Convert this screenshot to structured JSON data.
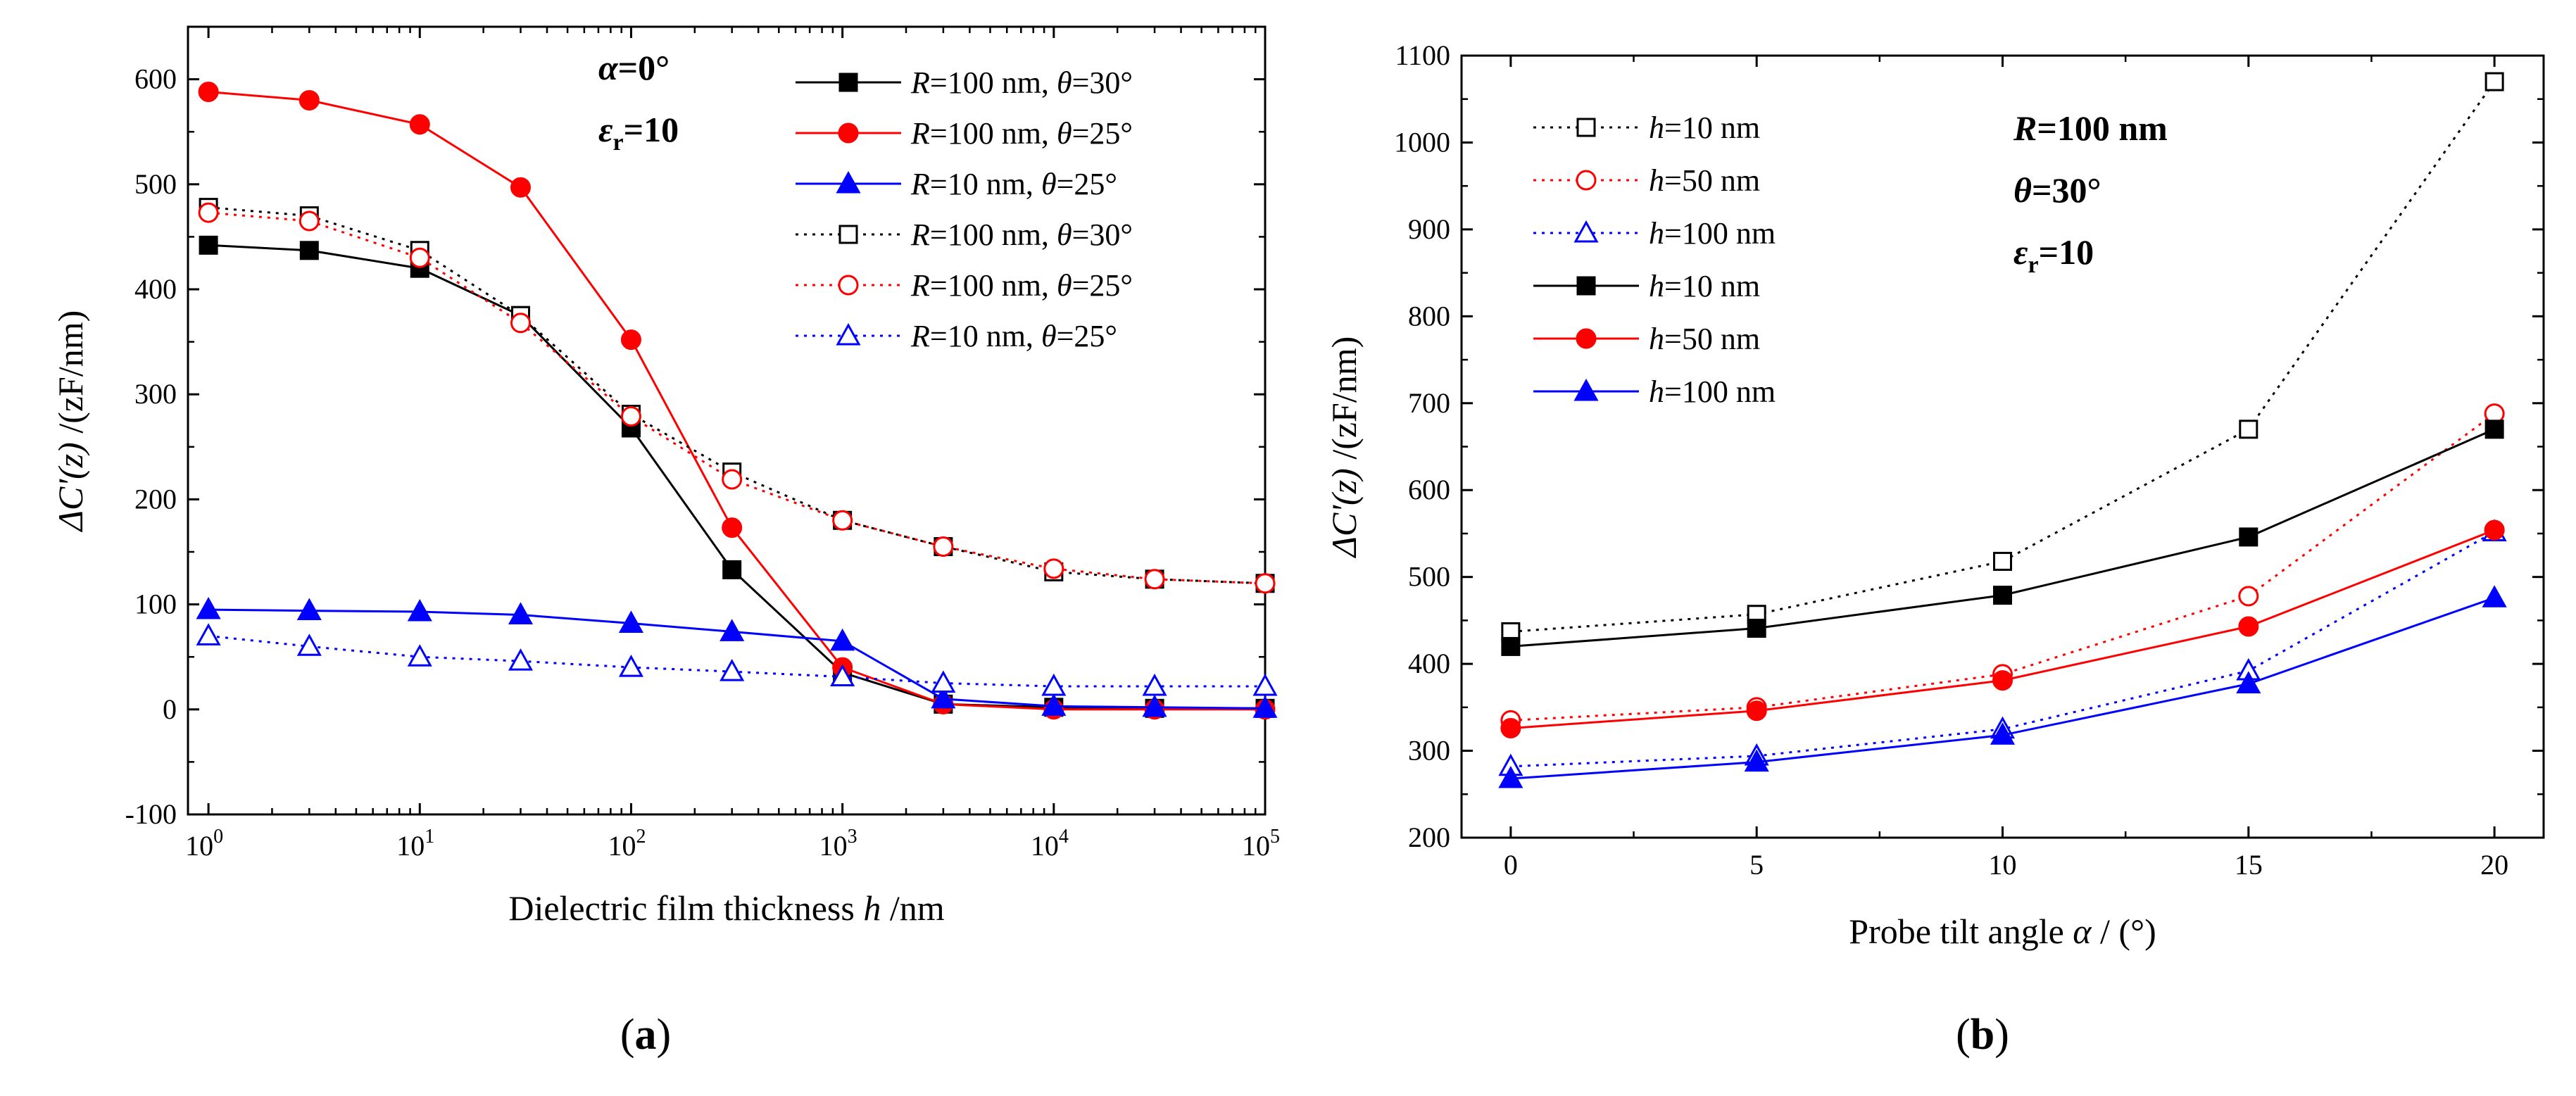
{
  "chart_data": [
    {
      "type": "line",
      "panel_label": "(a)",
      "panel_letter": "a",
      "xscale": "log",
      "xlabel": "Dielectric film thickness h /nm",
      "xlabel_main": "Dielectric film thickness ",
      "xlabel_var": "h",
      "xlabel_unit": " /nm",
      "ylabel": "ΔC'(z) /(zF/nm)",
      "ylabel_var": "ΔC'(z)",
      "ylabel_unit": " /(zF/nm)",
      "xlim": [
        0.8,
        100000
      ],
      "ylim": [
        -100,
        650
      ],
      "x_ticks": [
        {
          "value": 1,
          "base": "10",
          "exp": "0"
        },
        {
          "value": 10,
          "base": "10",
          "exp": "1"
        },
        {
          "value": 100,
          "base": "10",
          "exp": "2"
        },
        {
          "value": 1000,
          "base": "10",
          "exp": "3"
        },
        {
          "value": 10000,
          "base": "10",
          "exp": "4"
        },
        {
          "value": 100000,
          "base": "10",
          "exp": "5"
        }
      ],
      "y_ticks": [
        -100,
        0,
        100,
        200,
        300,
        400,
        500,
        600
      ],
      "annotations": [
        {
          "var": "α",
          "rest": "=0°"
        },
        {
          "var": "ε",
          "sub": "r",
          "rest": "=10"
        }
      ],
      "series": [
        {
          "legend_var": "R",
          "legend_mid": "=100 nm, ",
          "legend_var2": "θ",
          "legend_end": "=30°",
          "name": "R=100 nm, θ=30°",
          "color": "#000000",
          "marker": "square",
          "filled": true,
          "dashed": false,
          "x": [
            1,
            3,
            10,
            30,
            100,
            300,
            1000,
            3000,
            10000,
            30000,
            100000
          ],
          "values": [
            442,
            437,
            420,
            375,
            268,
            133,
            35,
            5,
            2,
            1,
            1
          ]
        },
        {
          "legend_var": "R",
          "legend_mid": "=100 nm, ",
          "legend_var2": "θ",
          "legend_end": "=25°",
          "name": "R=100 nm, θ=25°",
          "color": "#ff0000",
          "marker": "circle",
          "filled": true,
          "dashed": false,
          "x": [
            1,
            3,
            10,
            30,
            100,
            300,
            1000,
            3000,
            10000,
            30000,
            100000
          ],
          "values": [
            588,
            580,
            557,
            497,
            352,
            173,
            40,
            5,
            0,
            0,
            0
          ]
        },
        {
          "legend_var": "R",
          "legend_mid": "=10 nm, ",
          "legend_var2": "θ",
          "legend_end": "=25°",
          "name": "R=10 nm, θ=25°",
          "color": "#0000ff",
          "marker": "triangle",
          "filled": true,
          "dashed": false,
          "x": [
            1,
            3,
            10,
            30,
            100,
            300,
            1000,
            3000,
            10000,
            30000,
            100000
          ],
          "values": [
            95,
            94,
            93,
            90,
            82,
            74,
            65,
            10,
            3,
            2,
            1
          ]
        },
        {
          "legend_var": "R",
          "legend_mid": "=100 nm, ",
          "legend_var2": "θ",
          "legend_end": "=30°",
          "name": "R=100 nm, θ=30°",
          "color": "#000000",
          "marker": "square",
          "filled": false,
          "dashed": true,
          "x": [
            1,
            3,
            10,
            30,
            100,
            300,
            1000,
            3000,
            10000,
            30000,
            100000
          ],
          "values": [
            478,
            470,
            437,
            375,
            281,
            226,
            180,
            155,
            131,
            124,
            120
          ]
        },
        {
          "legend_var": "R",
          "legend_mid": "=100 nm, ",
          "legend_var2": "θ",
          "legend_end": "=25°",
          "name": "R=100 nm, θ=25°",
          "color": "#ff0000",
          "marker": "circle",
          "filled": false,
          "dashed": true,
          "x": [
            1,
            3,
            10,
            30,
            100,
            300,
            1000,
            3000,
            10000,
            30000,
            100000
          ],
          "values": [
            473,
            465,
            430,
            368,
            279,
            219,
            180,
            155,
            134,
            124,
            120
          ]
        },
        {
          "legend_var": "R",
          "legend_mid": "=10 nm, ",
          "legend_var2": "θ",
          "legend_end": "=25°",
          "name": "R=10 nm, θ=25°",
          "color": "#0000ff",
          "marker": "triangle",
          "filled": false,
          "dashed": true,
          "x": [
            1,
            3,
            10,
            30,
            100,
            300,
            1000,
            3000,
            10000,
            30000,
            100000
          ],
          "values": [
            70,
            60,
            50,
            46,
            40,
            36,
            31,
            25,
            22,
            22,
            22
          ]
        }
      ]
    },
    {
      "type": "line",
      "panel_label": "(b)",
      "panel_letter": "b",
      "xscale": "linear",
      "xlabel": "Probe tilt angle α / (°)",
      "xlabel_main": "Probe tilt angle ",
      "xlabel_var": "α",
      "xlabel_unit": " / (°)",
      "ylabel": "ΔC'(z) /(zF/nm)",
      "ylabel_var": "ΔC'(z)",
      "ylabel_unit": " /(zF/nm)",
      "xlim": [
        -1,
        21
      ],
      "ylim": [
        200,
        1100
      ],
      "x_ticks": [
        0,
        5,
        10,
        15,
        20
      ],
      "y_ticks": [
        200,
        300,
        400,
        500,
        600,
        700,
        800,
        900,
        1000,
        1100
      ],
      "annotations": [
        {
          "var": "R",
          "rest": "=100 nm"
        },
        {
          "var": "θ",
          "rest": "=30°"
        },
        {
          "var": "ε",
          "sub": "r",
          "rest": "=10"
        }
      ],
      "series": [
        {
          "legend_var": "h",
          "legend_end": "=10 nm",
          "name": "h=10 nm",
          "color": "#000000",
          "marker": "square",
          "filled": false,
          "dashed": true,
          "x": [
            0,
            5,
            10,
            15,
            20
          ],
          "values": [
            437,
            457,
            518,
            670,
            1070
          ]
        },
        {
          "legend_var": "h",
          "legend_end": "=50 nm",
          "name": "h=50 nm",
          "color": "#ff0000",
          "marker": "circle",
          "filled": false,
          "dashed": true,
          "x": [
            0,
            5,
            10,
            15,
            20
          ],
          "values": [
            335,
            350,
            388,
            478,
            688
          ]
        },
        {
          "legend_var": "h",
          "legend_end": "=100 nm",
          "name": "h=100 nm",
          "color": "#0000ff",
          "marker": "triangle",
          "filled": false,
          "dashed": true,
          "x": [
            0,
            5,
            10,
            15,
            20
          ],
          "values": [
            282,
            294,
            325,
            392,
            552
          ]
        },
        {
          "legend_var": "h",
          "legend_end": "=10 nm",
          "name": "h=10 nm",
          "color": "#000000",
          "marker": "square",
          "filled": true,
          "dashed": false,
          "x": [
            0,
            5,
            10,
            15,
            20
          ],
          "values": [
            420,
            441,
            479,
            546,
            670
          ]
        },
        {
          "legend_var": "h",
          "legend_end": "=50 nm",
          "name": "h=50 nm",
          "color": "#ff0000",
          "marker": "circle",
          "filled": true,
          "dashed": false,
          "x": [
            0,
            5,
            10,
            15,
            20
          ],
          "values": [
            326,
            346,
            381,
            443,
            554
          ]
        },
        {
          "legend_var": "h",
          "legend_end": "=100 nm",
          "name": "h=100 nm",
          "color": "#0000ff",
          "marker": "triangle",
          "filled": true,
          "dashed": false,
          "x": [
            0,
            5,
            10,
            15,
            20
          ],
          "values": [
            268,
            287,
            318,
            377,
            476
          ]
        }
      ]
    }
  ]
}
